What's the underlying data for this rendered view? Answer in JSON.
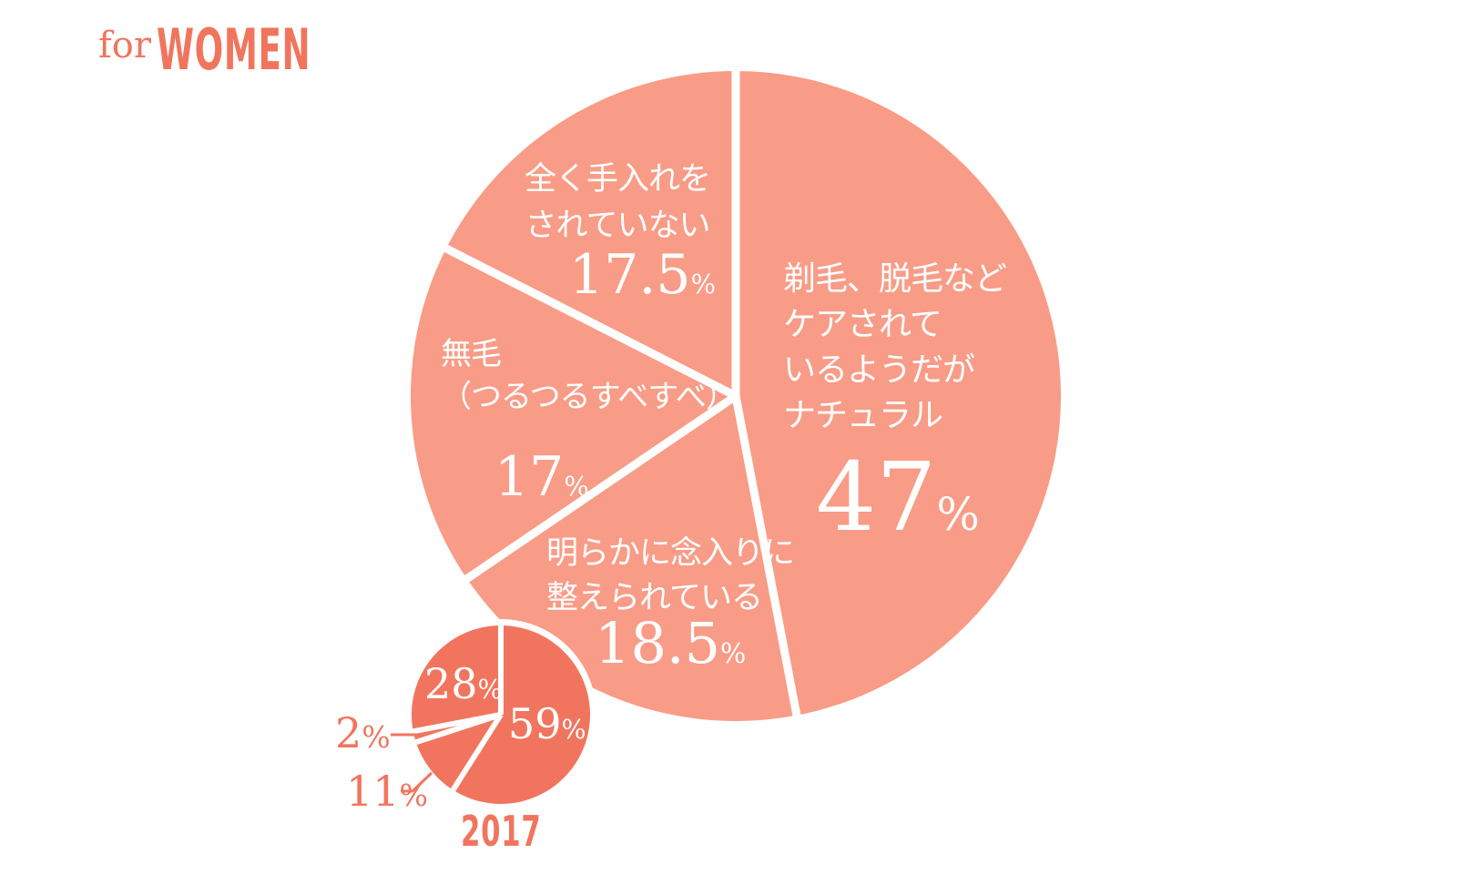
{
  "title": {
    "prefix": "for",
    "main": "WOMEN"
  },
  "colors": {
    "background": "#FFFFFF",
    "big_pie": "#F89C87",
    "small_pie": "#F1755E",
    "accent_text": "#F1755E",
    "pie_label_text": "#FFFFFF",
    "divider": "#FFFFFF"
  },
  "chart_data": [
    {
      "id": "main-pie",
      "type": "pie",
      "direction": "clockwise",
      "start_angle_deg": 0,
      "slices": [
        {
          "label": "剃毛、脱毛など\nケアされて\nいるようだが\nナチュラル",
          "value": 47,
          "display": "47",
          "unit": "%"
        },
        {
          "label": "明らかに念入りに\n整えられている",
          "value": 18.5,
          "display": "18.5",
          "unit": "%"
        },
        {
          "label": "無毛\n（つるつるすべすべ）",
          "value": 17,
          "display": "17",
          "unit": "%"
        },
        {
          "label": "全く手入れを\nされていない",
          "value": 17.5,
          "display": "17.5",
          "unit": "%"
        }
      ]
    },
    {
      "id": "year-2017-pie",
      "type": "pie",
      "title": "2017",
      "direction": "clockwise",
      "start_angle_deg": 0,
      "slices": [
        {
          "value": 59,
          "display": "59",
          "unit": "%"
        },
        {
          "value": 11,
          "display": "11",
          "unit": "%"
        },
        {
          "value": 2,
          "display": "2",
          "unit": "%"
        },
        {
          "value": 28,
          "display": "28",
          "unit": "%"
        }
      ]
    }
  ]
}
